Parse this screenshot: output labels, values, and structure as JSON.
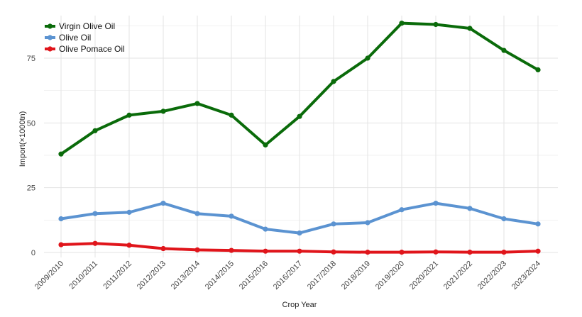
{
  "chart_data": {
    "type": "line",
    "title": "",
    "xlabel": "Crop Year",
    "ylabel": "Import(×1000tn)",
    "ylim": [
      0,
      90
    ],
    "yticks": [
      0,
      25,
      50,
      75
    ],
    "grid": true,
    "legend_position": "top-left",
    "categories": [
      "2009/2010",
      "2010/2011",
      "2011/2012",
      "2012/2013",
      "2013/2014",
      "2014/2015",
      "2015/2016",
      "2016/2017",
      "2017/2018",
      "2018/2019",
      "2019/2020",
      "2020/2021",
      "2021/2022",
      "2022/2023",
      "2023/2024"
    ],
    "series": [
      {
        "name": "Virgin Olive Oil",
        "color": "#0a6b0a",
        "values": [
          38,
          47,
          53,
          54.5,
          57.5,
          53,
          41.5,
          52.5,
          66,
          75,
          88.5,
          88,
          86.5,
          78,
          70.5
        ]
      },
      {
        "name": "Olive Oil",
        "color": "#5b93d1",
        "values": [
          13,
          15,
          15.5,
          19,
          15,
          14,
          9,
          7.5,
          11,
          11.5,
          16.5,
          19,
          17,
          13,
          11
        ]
      },
      {
        "name": "Olive Pomace Oil",
        "color": "#e0151b",
        "values": [
          3,
          3.5,
          2.8,
          1.5,
          1,
          0.8,
          0.5,
          0.5,
          0.2,
          0.1,
          0.1,
          0.2,
          0.1,
          0.1,
          0.5
        ]
      }
    ]
  }
}
